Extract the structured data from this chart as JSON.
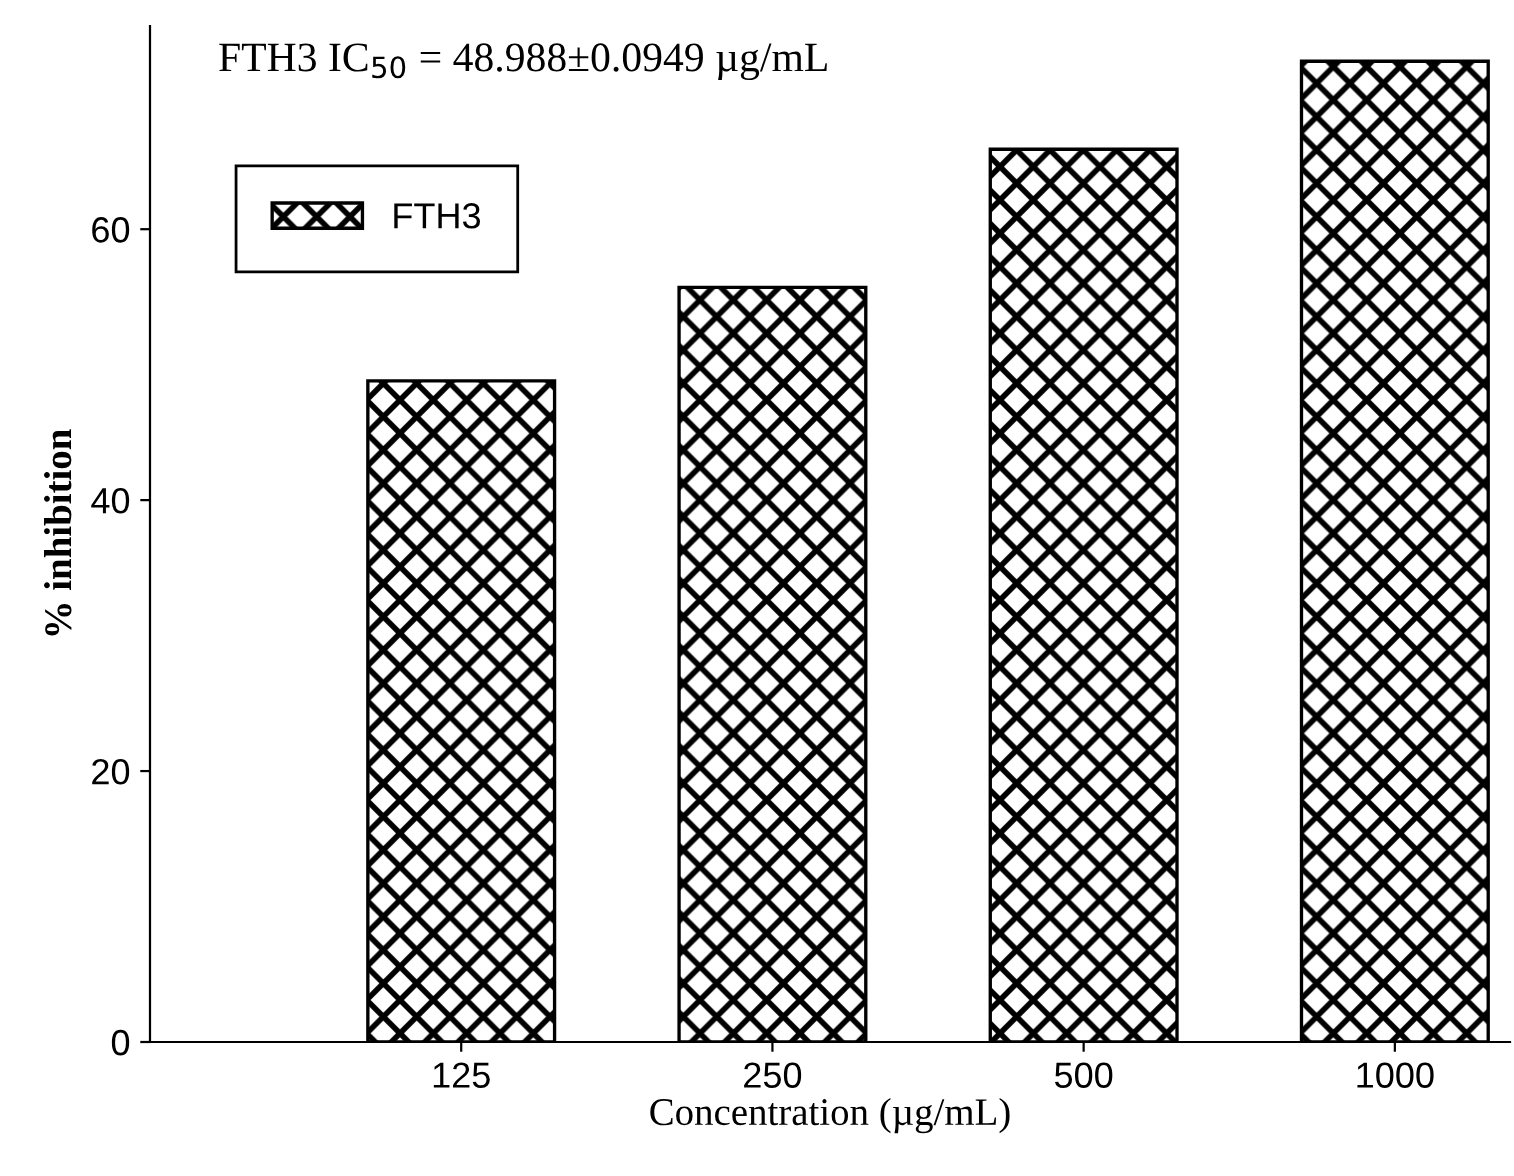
{
  "chart_data": {
    "type": "bar",
    "title": "FTH3 IC$_{50}$ = 48.988±0.0949 µg/mL",
    "xlabel": "Concentration (µg/mL)",
    "ylabel": "% inhibition",
    "categories": [
      "125",
      "250",
      "500",
      "1000"
    ],
    "series": [
      {
        "name": "FTH3",
        "color": "#000000",
        "values": [
          48.8,
          55.7,
          65.9,
          72.4
        ]
      }
    ],
    "ylim": [
      0,
      75
    ],
    "yticks": [
      0,
      20,
      40,
      60
    ],
    "grid": false,
    "legend": "top left"
  }
}
